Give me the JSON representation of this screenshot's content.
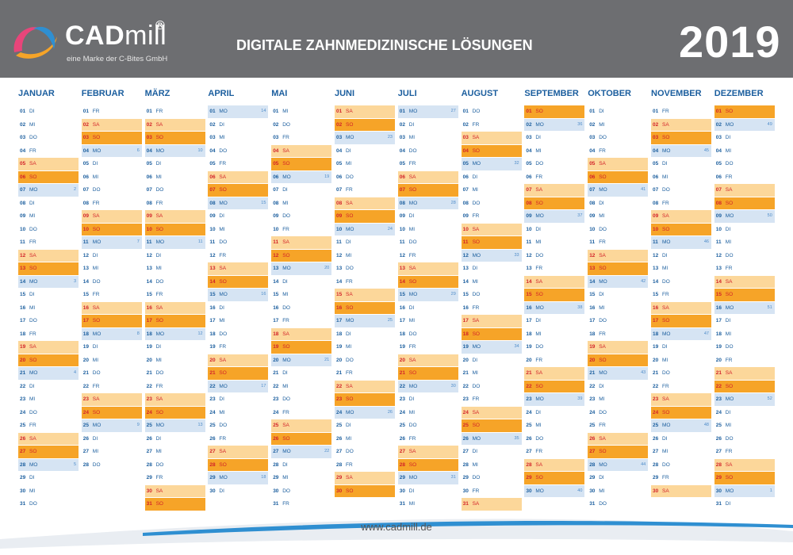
{
  "brand": {
    "name_bold": "CAD",
    "name_light": "mill",
    "registered": "®",
    "subtitle": "eine Marke der C-Bites GmbH"
  },
  "header": {
    "tagline": "DIGITALE ZAHNMEDIZINISCHE LÖSUNGEN",
    "year": "2019"
  },
  "footer": {
    "url": "www.cadmill.de"
  },
  "colors": {
    "header_bg": "#6d6e71",
    "monday_row": "#d6e4f3",
    "saturday_row": "#fcd79a",
    "sunday_row": "#f6a428",
    "month_title": "#1b5e9e"
  },
  "months": [
    {
      "name": "JANUAR",
      "days": 31,
      "start": 1,
      "kw_start": 1
    },
    {
      "name": "FEBRUAR",
      "days": 28,
      "start": 4,
      "kw_start": 6
    },
    {
      "name": "MÄRZ",
      "days": 31,
      "start": 4,
      "kw_start": 10
    },
    {
      "name": "APRIL",
      "days": 30,
      "start": 0,
      "kw_start": 14
    },
    {
      "name": "MAI",
      "days": 31,
      "start": 2,
      "kw_start": 19
    },
    {
      "name": "JUNI",
      "days": 30,
      "start": 5,
      "kw_start": 23
    },
    {
      "name": "JULI",
      "days": 31,
      "start": 0,
      "kw_start": 27
    },
    {
      "name": "AUGUST",
      "days": 31,
      "start": 3,
      "kw_start": 32
    },
    {
      "name": "SEPTEMBER",
      "days": 30,
      "start": 6,
      "kw_start": 36
    },
    {
      "name": "OKTOBER",
      "days": 31,
      "start": 1,
      "kw_start": 41
    },
    {
      "name": "NOVEMBER",
      "days": 30,
      "start": 4,
      "kw_start": 45
    },
    {
      "name": "DEZEMBER",
      "days": 31,
      "start": 6,
      "kw_start": 49
    }
  ],
  "weekday_abbr": [
    "MO",
    "DI",
    "MI",
    "DO",
    "FR",
    "SA",
    "SO"
  ]
}
